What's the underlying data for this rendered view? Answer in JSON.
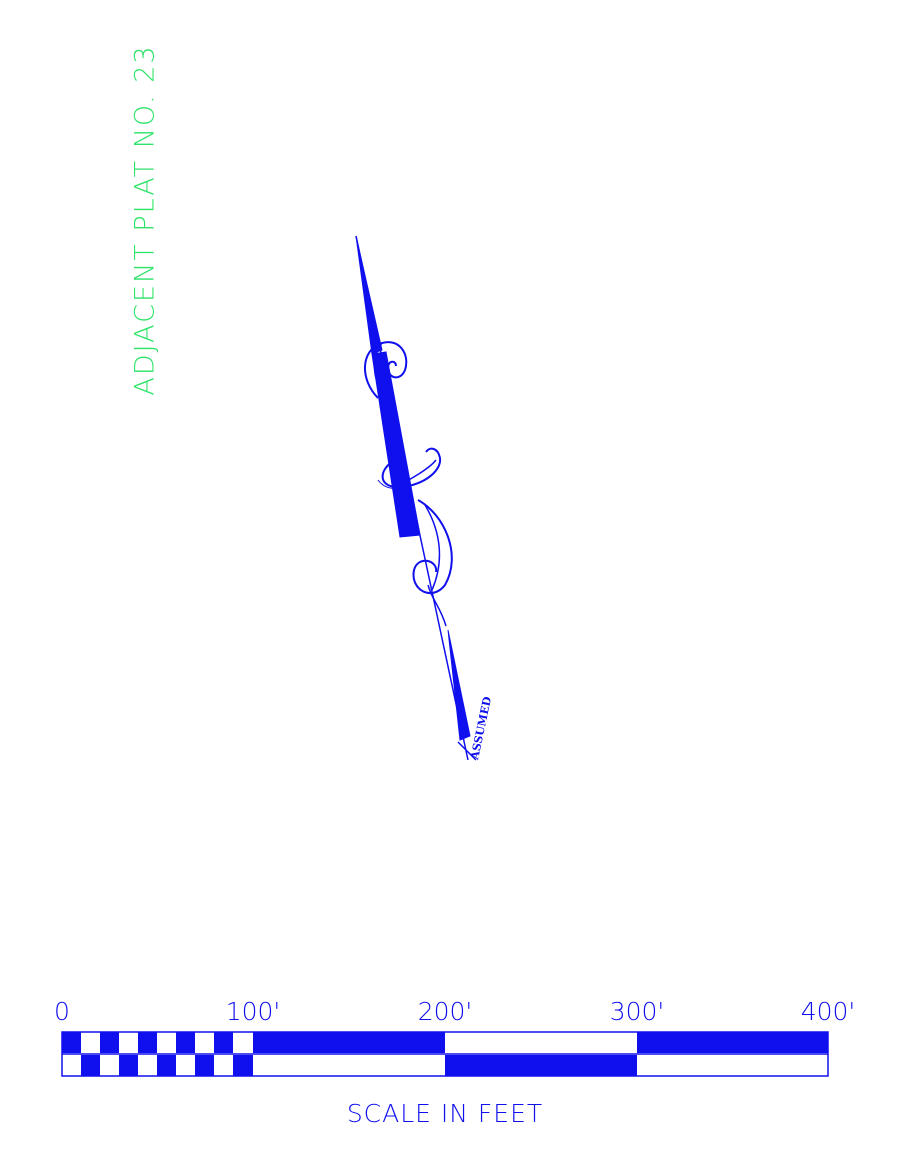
{
  "adjacent_label": "ADJACENT PLAT NO. 23",
  "north_arrow": {
    "label": "ASSUMED",
    "icon": "north-arrow-icon"
  },
  "scale_bar": {
    "title": "SCALE IN FEET",
    "ticks": [
      "0",
      "100'",
      "200'",
      "300'",
      "400'"
    ]
  },
  "colors": {
    "label_green": "#2ee36a",
    "drawing_blue": "#1010ee"
  }
}
